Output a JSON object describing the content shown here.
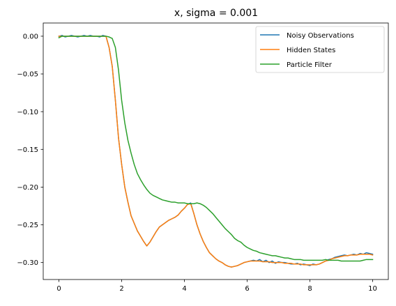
{
  "chart_data": {
    "type": "line",
    "title": "x, sigma = 0.001",
    "xlabel": "",
    "ylabel": "",
    "xlim": [
      -0.5,
      10.5
    ],
    "ylim": [
      -0.3225,
      0.0175
    ],
    "grid": false,
    "legend_position": "top-right",
    "x_ticks": [
      0,
      2,
      4,
      6,
      8,
      10
    ],
    "x_tick_labels": [
      "0",
      "2",
      "4",
      "6",
      "8",
      "10"
    ],
    "y_ticks": [
      0.0,
      -0.05,
      -0.1,
      -0.15,
      -0.2,
      -0.25,
      -0.3
    ],
    "y_tick_labels": [
      "0.00",
      "−0.05",
      "−0.10",
      "−0.15",
      "−0.20",
      "−0.25",
      "−0.30"
    ],
    "series": [
      {
        "name": "Noisy Observations",
        "color": "#1f77b4",
        "x": [
          0,
          0.1,
          0.2,
          0.3,
          0.4,
          0.5,
          0.6,
          0.7,
          0.8,
          0.9,
          1.0,
          1.1,
          1.2,
          1.3,
          1.4,
          1.5,
          1.6,
          1.7,
          1.8,
          1.9,
          2.0,
          2.1,
          2.2,
          2.3,
          2.4,
          2.5,
          2.6,
          2.7,
          2.8,
          2.9,
          3.0,
          3.1,
          3.2,
          3.3,
          3.4,
          3.5,
          3.6,
          3.7,
          3.8,
          3.9,
          4.0,
          4.1,
          4.2,
          4.3,
          4.4,
          4.5,
          4.6,
          4.7,
          4.8,
          4.9,
          5.0,
          5.1,
          5.2,
          5.3,
          5.4,
          5.5,
          5.6,
          5.7,
          5.8,
          5.9,
          6.0,
          6.1,
          6.2,
          6.3,
          6.4,
          6.5,
          6.6,
          6.7,
          6.8,
          6.9,
          7.0,
          7.1,
          7.2,
          7.3,
          7.4,
          7.5,
          7.6,
          7.7,
          7.8,
          7.9,
          8.0,
          8.1,
          8.2,
          8.3,
          8.4,
          8.5,
          8.6,
          8.7,
          8.8,
          8.9,
          9.0,
          9.1,
          9.2,
          9.3,
          9.4,
          9.5,
          9.6,
          9.7,
          9.8,
          9.9,
          10.0
        ],
        "values": [
          0.0,
          0.001,
          -0.001,
          0.0,
          0.001,
          0.0,
          -0.001,
          0.0,
          0.001,
          0.0,
          0.001,
          0.0,
          0.0,
          -0.001,
          0.001,
          0.0,
          -0.015,
          -0.04,
          -0.085,
          -0.135,
          -0.17,
          -0.2,
          -0.22,
          -0.238,
          -0.248,
          -0.258,
          -0.265,
          -0.272,
          -0.278,
          -0.273,
          -0.266,
          -0.259,
          -0.253,
          -0.25,
          -0.247,
          -0.244,
          -0.242,
          -0.24,
          -0.237,
          -0.232,
          -0.228,
          -0.223,
          -0.221,
          -0.235,
          -0.25,
          -0.262,
          -0.272,
          -0.28,
          -0.287,
          -0.291,
          -0.295,
          -0.298,
          -0.3,
          -0.303,
          -0.305,
          -0.306,
          -0.305,
          -0.304,
          -0.302,
          -0.3,
          -0.299,
          -0.298,
          -0.297,
          -0.298,
          -0.296,
          -0.299,
          -0.297,
          -0.3,
          -0.298,
          -0.301,
          -0.299,
          -0.3,
          -0.3,
          -0.301,
          -0.302,
          -0.302,
          -0.301,
          -0.303,
          -0.302,
          -0.303,
          -0.304,
          -0.302,
          -0.303,
          -0.302,
          -0.3,
          -0.298,
          -0.296,
          -0.295,
          -0.293,
          -0.292,
          -0.291,
          -0.29,
          -0.291,
          -0.29,
          -0.289,
          -0.29,
          -0.288,
          -0.289,
          -0.287,
          -0.288,
          -0.289
        ]
      },
      {
        "name": "Hidden States",
        "color": "#ff7f0e",
        "x": [
          0,
          0.1,
          0.2,
          0.3,
          0.4,
          0.5,
          0.6,
          0.7,
          0.8,
          0.9,
          1.0,
          1.1,
          1.2,
          1.3,
          1.4,
          1.5,
          1.6,
          1.7,
          1.8,
          1.9,
          2.0,
          2.1,
          2.2,
          2.3,
          2.4,
          2.5,
          2.6,
          2.7,
          2.8,
          2.9,
          3.0,
          3.1,
          3.2,
          3.3,
          3.4,
          3.5,
          3.6,
          3.7,
          3.8,
          3.9,
          4.0,
          4.1,
          4.2,
          4.3,
          4.4,
          4.5,
          4.6,
          4.7,
          4.8,
          4.9,
          5.0,
          5.1,
          5.2,
          5.3,
          5.4,
          5.5,
          5.6,
          5.7,
          5.8,
          5.9,
          6.0,
          6.1,
          6.2,
          6.3,
          6.4,
          6.5,
          6.6,
          6.7,
          6.8,
          6.9,
          7.0,
          7.1,
          7.2,
          7.3,
          7.4,
          7.5,
          7.6,
          7.7,
          7.8,
          7.9,
          8.0,
          8.1,
          8.2,
          8.3,
          8.4,
          8.5,
          8.6,
          8.7,
          8.8,
          8.9,
          9.0,
          9.1,
          9.2,
          9.3,
          9.4,
          9.5,
          9.6,
          9.7,
          9.8,
          9.9,
          10.0
        ],
        "values": [
          0.0,
          0.0,
          0.0,
          0.0,
          0.0,
          0.0,
          0.0,
          0.0,
          0.0,
          0.0,
          0.0,
          0.0,
          0.0,
          0.0,
          0.0,
          0.0,
          -0.015,
          -0.04,
          -0.085,
          -0.135,
          -0.17,
          -0.2,
          -0.22,
          -0.238,
          -0.248,
          -0.258,
          -0.265,
          -0.272,
          -0.278,
          -0.273,
          -0.266,
          -0.259,
          -0.253,
          -0.25,
          -0.247,
          -0.244,
          -0.242,
          -0.24,
          -0.237,
          -0.232,
          -0.228,
          -0.223,
          -0.222,
          -0.235,
          -0.25,
          -0.262,
          -0.272,
          -0.28,
          -0.287,
          -0.291,
          -0.295,
          -0.298,
          -0.3,
          -0.303,
          -0.305,
          -0.306,
          -0.305,
          -0.304,
          -0.302,
          -0.3,
          -0.299,
          -0.298,
          -0.298,
          -0.298,
          -0.298,
          -0.299,
          -0.299,
          -0.299,
          -0.3,
          -0.3,
          -0.3,
          -0.3,
          -0.301,
          -0.301,
          -0.301,
          -0.302,
          -0.302,
          -0.302,
          -0.303,
          -0.303,
          -0.303,
          -0.303,
          -0.303,
          -0.302,
          -0.3,
          -0.298,
          -0.297,
          -0.295,
          -0.294,
          -0.293,
          -0.292,
          -0.291,
          -0.291,
          -0.29,
          -0.29,
          -0.29,
          -0.289,
          -0.289,
          -0.289,
          -0.289,
          -0.29
        ]
      },
      {
        "name": "Particle Filter",
        "color": "#2ca02c",
        "x": [
          0,
          0.1,
          0.2,
          0.3,
          0.4,
          0.5,
          0.6,
          0.7,
          0.8,
          0.9,
          1.0,
          1.1,
          1.2,
          1.3,
          1.4,
          1.5,
          1.6,
          1.7,
          1.8,
          1.9,
          2.0,
          2.1,
          2.2,
          2.3,
          2.4,
          2.5,
          2.6,
          2.7,
          2.8,
          2.9,
          3.0,
          3.1,
          3.2,
          3.3,
          3.4,
          3.5,
          3.6,
          3.7,
          3.8,
          3.9,
          4.0,
          4.1,
          4.2,
          4.3,
          4.4,
          4.5,
          4.6,
          4.7,
          4.8,
          4.9,
          5.0,
          5.1,
          5.2,
          5.3,
          5.4,
          5.5,
          5.6,
          5.7,
          5.8,
          5.9,
          6.0,
          6.1,
          6.2,
          6.3,
          6.4,
          6.5,
          6.6,
          6.7,
          6.8,
          6.9,
          7.0,
          7.1,
          7.2,
          7.3,
          7.4,
          7.5,
          7.6,
          7.7,
          7.8,
          7.9,
          8.0,
          8.1,
          8.2,
          8.3,
          8.4,
          8.5,
          8.6,
          8.7,
          8.8,
          8.9,
          9.0,
          9.1,
          9.2,
          9.3,
          9.4,
          9.5,
          9.6,
          9.7,
          9.8,
          9.9,
          10.0
        ],
        "values": [
          -0.002,
          0.0,
          0.0,
          0.0,
          0.0,
          0.0,
          0.0,
          0.0,
          0.0,
          0.0,
          0.0,
          0.0,
          0.0,
          0.0,
          0.0,
          0.0,
          -0.001,
          -0.003,
          -0.015,
          -0.045,
          -0.085,
          -0.115,
          -0.138,
          -0.155,
          -0.17,
          -0.182,
          -0.19,
          -0.197,
          -0.203,
          -0.208,
          -0.211,
          -0.213,
          -0.215,
          -0.217,
          -0.218,
          -0.219,
          -0.22,
          -0.22,
          -0.221,
          -0.221,
          -0.221,
          -0.222,
          -0.222,
          -0.222,
          -0.221,
          -0.222,
          -0.224,
          -0.227,
          -0.231,
          -0.235,
          -0.24,
          -0.245,
          -0.25,
          -0.255,
          -0.259,
          -0.263,
          -0.268,
          -0.271,
          -0.273,
          -0.277,
          -0.28,
          -0.282,
          -0.284,
          -0.285,
          -0.287,
          -0.288,
          -0.289,
          -0.29,
          -0.291,
          -0.291,
          -0.292,
          -0.293,
          -0.294,
          -0.294,
          -0.295,
          -0.296,
          -0.296,
          -0.296,
          -0.297,
          -0.297,
          -0.297,
          -0.297,
          -0.297,
          -0.297,
          -0.297,
          -0.296,
          -0.297,
          -0.297,
          -0.297,
          -0.297,
          -0.298,
          -0.298,
          -0.298,
          -0.298,
          -0.298,
          -0.298,
          -0.298,
          -0.297,
          -0.296,
          -0.296,
          -0.296
        ]
      }
    ]
  }
}
